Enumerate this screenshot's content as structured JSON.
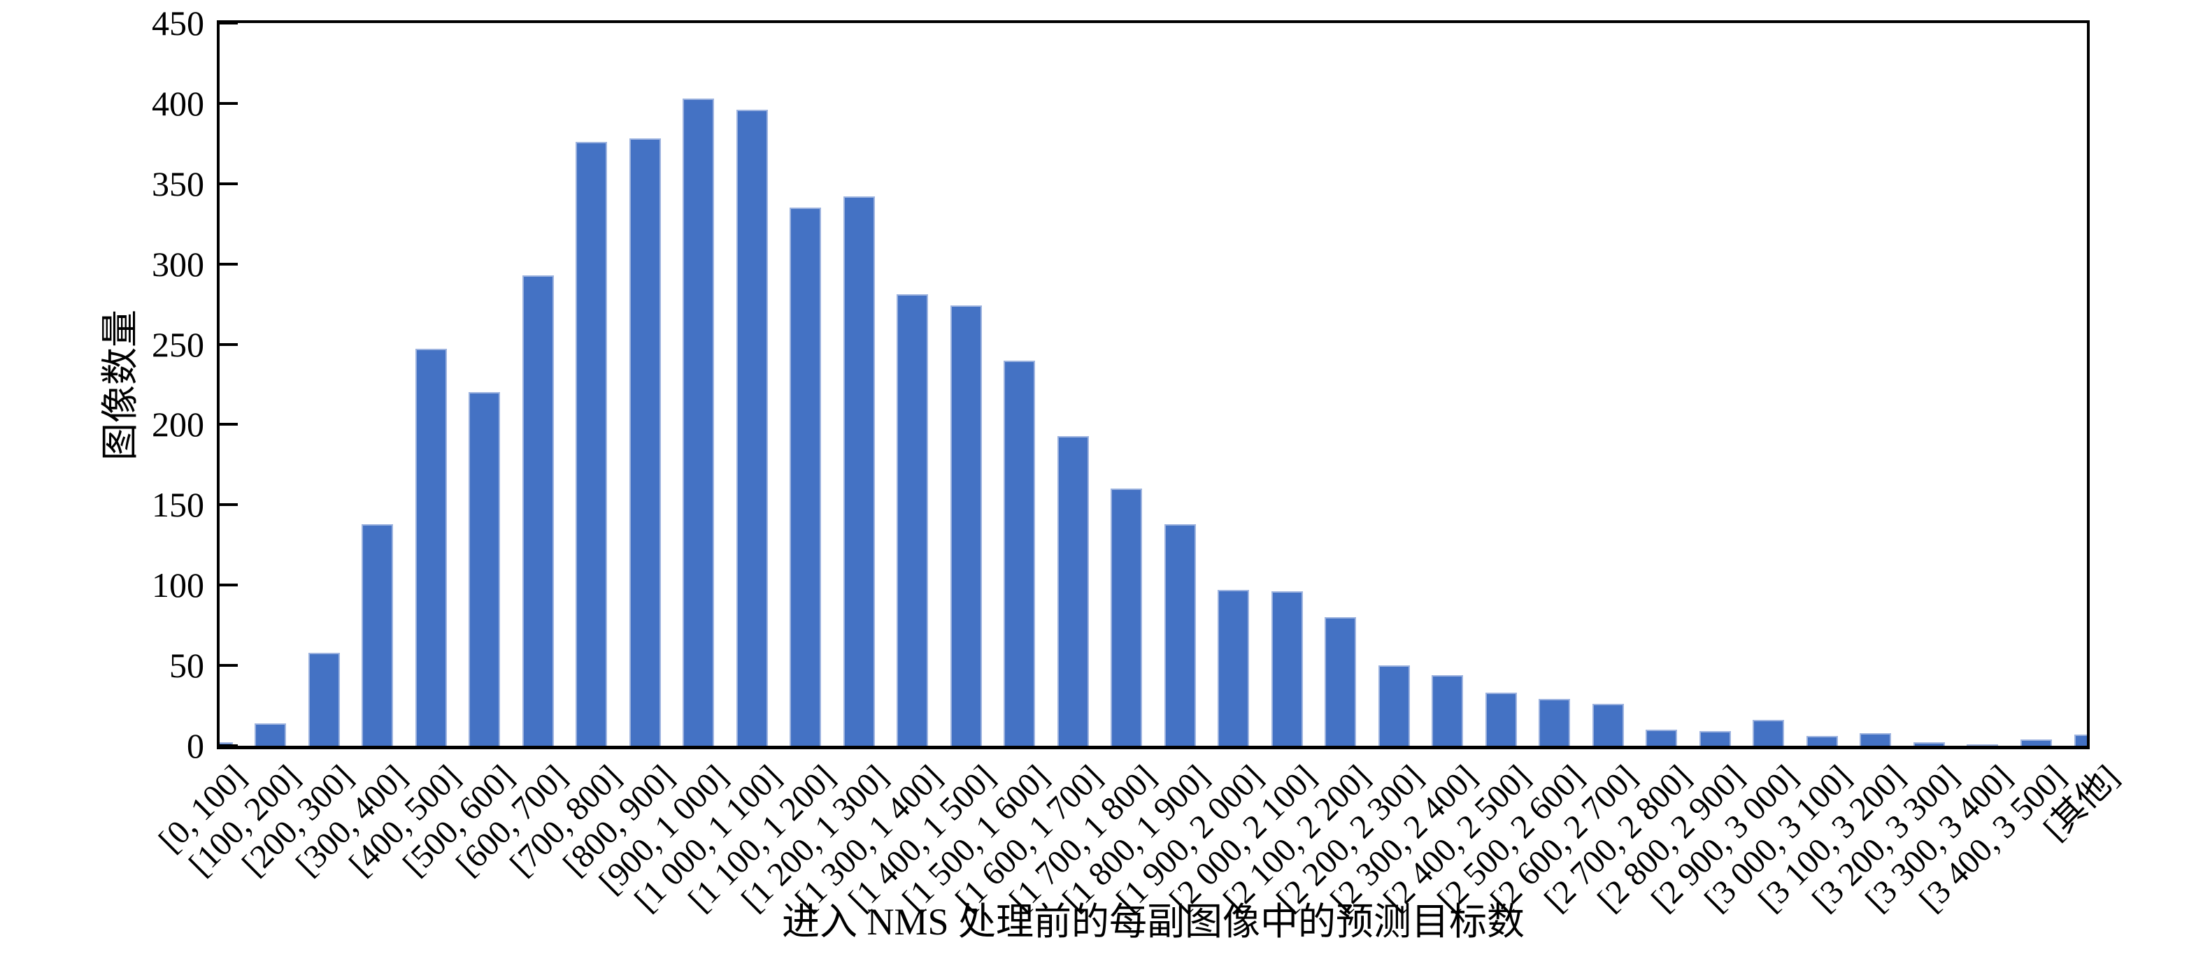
{
  "chart_data": {
    "type": "bar",
    "title": "",
    "xlabel": "进入 NMS 处理前的每副图像中的预测目标数",
    "ylabel": "图像数量",
    "categories": [
      "[0, 100]",
      "[100, 200]",
      "[200, 300]",
      "[300, 400]",
      "[400, 500]",
      "[500, 600]",
      "[600, 700]",
      "[700, 800]",
      "[800, 900]",
      "[900, 1 000]",
      "[1 000, 1 100]",
      "[1 100, 1 200]",
      "[1 200, 1 300]",
      "[1 300, 1 400]",
      "[1 400, 1 500]",
      "[1 500, 1 600]",
      "[1 600, 1 700]",
      "[1 700, 1 800]",
      "[1 800, 1 900]",
      "[1 900, 2 000]",
      "[2 000, 2 100]",
      "[2 100, 2 200]",
      "[2 200, 2 300]",
      "[2 300, 2 400]",
      "[2 400, 2 500]",
      "[2 500, 2 600]",
      "[2 600, 2 700]",
      "[2 700, 2 800]",
      "[2 800, 2 900]",
      "[2 900, 3 000]",
      "[3 000, 3 100]",
      "[3 100, 3 200]",
      "[3 200, 3 300]",
      "[3 300, 3 400]",
      "[3 400, 3 500]",
      "[其他]"
    ],
    "values": [
      2,
      14,
      58,
      138,
      247,
      220,
      293,
      376,
      378,
      403,
      396,
      335,
      342,
      281,
      274,
      240,
      193,
      160,
      138,
      97,
      96,
      80,
      50,
      44,
      33,
      29,
      26,
      10,
      9,
      16,
      6,
      8,
      2,
      1,
      4,
      7
    ],
    "ylim": [
      0,
      450
    ],
    "ytick_step": 50,
    "yticks": [
      "0",
      "50",
      "100",
      "150",
      "200",
      "250",
      "300",
      "350",
      "400",
      "450"
    ],
    "grid": false,
    "legend": null,
    "bar_color": "#4472C4",
    "bar_edge_color": "#9DB3DF",
    "axis_color": "#000000",
    "background_color": "#ffffff"
  }
}
